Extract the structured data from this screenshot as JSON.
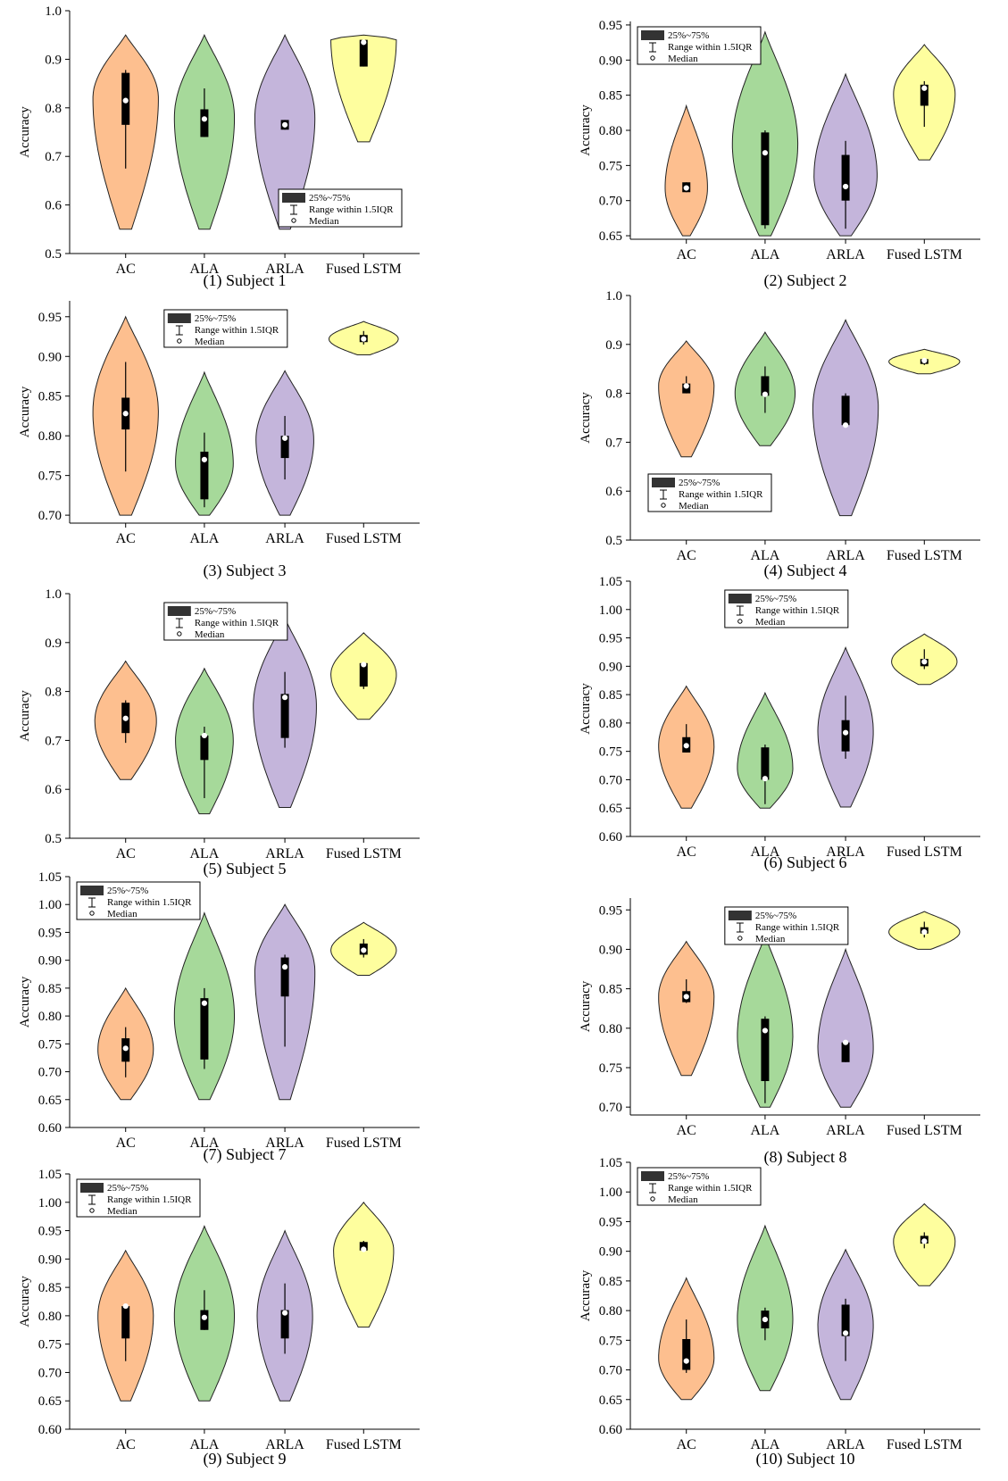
{
  "figure": {
    "legend_labels": [
      "25%~75%",
      "Range within 1.5IQR",
      "Median"
    ],
    "colors": {
      "AC": "#FDBF8F",
      "ALA": "#A6D99A",
      "ARLA": "#C4B5DB",
      "Fused LSTM": "#FEFE9E",
      "box": "#000000"
    }
  },
  "chart_data": [
    {
      "type": "violin",
      "caption": "(1) Subject 1",
      "ylabel": "Accuracy",
      "categories": [
        "AC",
        "ALA",
        "ARLA",
        "Fused LSTM"
      ],
      "ylim": [
        0.5,
        1.0
      ],
      "yticks": [
        "0.5",
        "0.6",
        "0.7",
        "0.8",
        "0.9",
        "1.0"
      ],
      "legend_position": "bottom-right",
      "series": [
        {
          "name": "AC",
          "min": 0.55,
          "max": 0.95,
          "q1": 0.765,
          "median": 0.815,
          "q3": 0.872,
          "whisker_low": 0.675,
          "whisker_high": 0.878,
          "peak": 0.82,
          "width": 0.85
        },
        {
          "name": "ALA",
          "min": 0.55,
          "max": 0.95,
          "q1": 0.74,
          "median": 0.777,
          "q3": 0.797,
          "whisker_low": 0.74,
          "whisker_high": 0.84,
          "peak": 0.78,
          "width": 0.78
        },
        {
          "name": "ARLA",
          "min": 0.55,
          "max": 0.95,
          "q1": 0.755,
          "median": 0.765,
          "q3": 0.775,
          "whisker_low": 0.755,
          "whisker_high": 0.775,
          "peak": 0.78,
          "width": 0.78
        },
        {
          "name": "Fused LSTM",
          "min": 0.73,
          "max": 0.95,
          "q1": 0.885,
          "median": 0.935,
          "q3": 0.94,
          "whisker_low": 0.885,
          "whisker_high": 0.94,
          "peak": 0.94,
          "width": 0.85
        }
      ]
    },
    {
      "type": "violin",
      "caption": "(2) Subject 2",
      "ylabel": "Accuracy",
      "categories": [
        "AC",
        "ALA",
        "ARLA",
        "Fused LSTM"
      ],
      "ylim": [
        0.645,
        0.955
      ],
      "yticks": [
        "0.65",
        "0.70",
        "0.75",
        "0.80",
        "0.85",
        "0.90",
        "0.95"
      ],
      "legend_position": "top-left",
      "series": [
        {
          "name": "AC",
          "min": 0.65,
          "max": 0.835,
          "q1": 0.712,
          "median": 0.718,
          "q3": 0.726,
          "whisker_low": 0.712,
          "whisker_high": 0.726,
          "peak": 0.718,
          "width": 0.55
        },
        {
          "name": "ALA",
          "min": 0.65,
          "max": 0.94,
          "q1": 0.665,
          "median": 0.768,
          "q3": 0.797,
          "whisker_low": 0.66,
          "whisker_high": 0.8,
          "peak": 0.78,
          "width": 0.85
        },
        {
          "name": "ARLA",
          "min": 0.65,
          "max": 0.88,
          "q1": 0.7,
          "median": 0.72,
          "q3": 0.765,
          "whisker_low": 0.66,
          "whisker_high": 0.785,
          "peak": 0.735,
          "width": 0.82
        },
        {
          "name": "Fused LSTM",
          "min": 0.758,
          "max": 0.922,
          "q1": 0.835,
          "median": 0.86,
          "q3": 0.865,
          "whisker_low": 0.805,
          "whisker_high": 0.87,
          "peak": 0.852,
          "width": 0.8
        }
      ]
    },
    {
      "type": "violin",
      "caption": "(3) Subject 3",
      "ylabel": "Accuracy",
      "categories": [
        "AC",
        "ALA",
        "ARLA",
        "Fused LSTM"
      ],
      "ylim": [
        0.69,
        0.97
      ],
      "yticks": [
        "0.70",
        "0.75",
        "0.80",
        "0.85",
        "0.90",
        "0.95"
      ],
      "legend_position": "top-center",
      "series": [
        {
          "name": "AC",
          "min": 0.7,
          "max": 0.95,
          "q1": 0.808,
          "median": 0.828,
          "q3": 0.848,
          "whisker_low": 0.755,
          "whisker_high": 0.893,
          "peak": 0.83,
          "width": 0.85
        },
        {
          "name": "ALA",
          "min": 0.7,
          "max": 0.88,
          "q1": 0.72,
          "median": 0.77,
          "q3": 0.78,
          "whisker_low": 0.71,
          "whisker_high": 0.804,
          "peak": 0.765,
          "width": 0.75
        },
        {
          "name": "ARLA",
          "min": 0.7,
          "max": 0.882,
          "q1": 0.772,
          "median": 0.797,
          "q3": 0.8,
          "whisker_low": 0.745,
          "whisker_high": 0.825,
          "peak": 0.795,
          "width": 0.75
        },
        {
          "name": "Fused LSTM",
          "min": 0.902,
          "max": 0.944,
          "q1": 0.918,
          "median": 0.922,
          "q3": 0.927,
          "whisker_low": 0.915,
          "whisker_high": 0.932,
          "peak": 0.922,
          "width": 0.9
        }
      ]
    },
    {
      "type": "violin",
      "caption": "(4) Subject 4",
      "ylabel": "Accuracy",
      "categories": [
        "AC",
        "ALA",
        "ARLA",
        "Fused LSTM"
      ],
      "ylim": [
        0.5,
        1.0
      ],
      "yticks": [
        "0.5",
        "0.6",
        "0.7",
        "0.8",
        "0.9",
        "1.0"
      ],
      "legend_position": "bottom-left",
      "series": [
        {
          "name": "AC",
          "min": 0.67,
          "max": 0.907,
          "q1": 0.8,
          "median": 0.815,
          "q3": 0.82,
          "whisker_low": 0.8,
          "whisker_high": 0.835,
          "peak": 0.815,
          "width": 0.72
        },
        {
          "name": "ALA",
          "min": 0.693,
          "max": 0.925,
          "q1": 0.795,
          "median": 0.798,
          "q3": 0.835,
          "whisker_low": 0.76,
          "whisker_high": 0.855,
          "peak": 0.8,
          "width": 0.78
        },
        {
          "name": "ARLA",
          "min": 0.55,
          "max": 0.95,
          "q1": 0.735,
          "median": 0.735,
          "q3": 0.795,
          "whisker_low": 0.735,
          "whisker_high": 0.8,
          "peak": 0.77,
          "width": 0.85
        },
        {
          "name": "Fused LSTM",
          "min": 0.84,
          "max": 0.89,
          "q1": 0.86,
          "median": 0.867,
          "q3": 0.87,
          "whisker_low": 0.858,
          "whisker_high": 0.872,
          "peak": 0.865,
          "width": 0.92
        }
      ]
    },
    {
      "type": "violin",
      "caption": "(5) Subject 5",
      "ylabel": "Accuracy",
      "categories": [
        "AC",
        "ALA",
        "ARLA",
        "Fused LSTM"
      ],
      "ylim": [
        0.5,
        1.0
      ],
      "yticks": [
        "0.5",
        "0.6",
        "0.7",
        "0.8",
        "0.9",
        "1.0"
      ],
      "legend_position": "top-center",
      "series": [
        {
          "name": "AC",
          "min": 0.62,
          "max": 0.862,
          "q1": 0.715,
          "median": 0.745,
          "q3": 0.777,
          "whisker_low": 0.695,
          "whisker_high": 0.782,
          "peak": 0.74,
          "width": 0.8
        },
        {
          "name": "ALA",
          "min": 0.55,
          "max": 0.847,
          "q1": 0.66,
          "median": 0.71,
          "q3": 0.71,
          "whisker_low": 0.582,
          "whisker_high": 0.728,
          "peak": 0.7,
          "width": 0.75
        },
        {
          "name": "ARLA",
          "min": 0.563,
          "max": 0.95,
          "q1": 0.705,
          "median": 0.788,
          "q3": 0.795,
          "whisker_low": 0.685,
          "whisker_high": 0.84,
          "peak": 0.77,
          "width": 0.82
        },
        {
          "name": "Fused LSTM",
          "min": 0.743,
          "max": 0.92,
          "q1": 0.81,
          "median": 0.855,
          "q3": 0.858,
          "whisker_low": 0.805,
          "whisker_high": 0.86,
          "peak": 0.835,
          "width": 0.85
        }
      ]
    },
    {
      "type": "violin",
      "caption": "(6) Subject 6",
      "ylabel": "Accuracy",
      "categories": [
        "AC",
        "ALA",
        "ARLA",
        "Fused LSTM"
      ],
      "ylim": [
        0.6,
        1.05
      ],
      "yticks": [
        "0.60",
        "0.65",
        "0.70",
        "0.75",
        "0.80",
        "0.85",
        "0.90",
        "0.95",
        "1.00",
        "1.05"
      ],
      "legend_position": "top-center",
      "series": [
        {
          "name": "AC",
          "min": 0.65,
          "max": 0.865,
          "q1": 0.748,
          "median": 0.76,
          "q3": 0.775,
          "whisker_low": 0.748,
          "whisker_high": 0.798,
          "peak": 0.76,
          "width": 0.72
        },
        {
          "name": "ALA",
          "min": 0.65,
          "max": 0.853,
          "q1": 0.7,
          "median": 0.702,
          "q3": 0.757,
          "whisker_low": 0.657,
          "whisker_high": 0.762,
          "peak": 0.72,
          "width": 0.72
        },
        {
          "name": "ARLA",
          "min": 0.652,
          "max": 0.933,
          "q1": 0.75,
          "median": 0.783,
          "q3": 0.805,
          "whisker_low": 0.737,
          "whisker_high": 0.848,
          "peak": 0.785,
          "width": 0.72
        },
        {
          "name": "Fused LSTM",
          "min": 0.868,
          "max": 0.957,
          "q1": 0.9,
          "median": 0.908,
          "q3": 0.913,
          "whisker_low": 0.895,
          "whisker_high": 0.93,
          "peak": 0.908,
          "width": 0.85
        }
      ]
    },
    {
      "type": "violin",
      "caption": "(7) Subject 7",
      "ylabel": "Accuracy",
      "categories": [
        "AC",
        "ALA",
        "ARLA",
        "Fused LSTM"
      ],
      "ylim": [
        0.6,
        1.05
      ],
      "yticks": [
        "0.60",
        "0.65",
        "0.70",
        "0.75",
        "0.80",
        "0.85",
        "0.90",
        "0.95",
        "1.00",
        "1.05"
      ],
      "legend_position": "top-left",
      "series": [
        {
          "name": "AC",
          "min": 0.65,
          "max": 0.85,
          "q1": 0.718,
          "median": 0.742,
          "q3": 0.76,
          "whisker_low": 0.69,
          "whisker_high": 0.78,
          "peak": 0.74,
          "width": 0.72
        },
        {
          "name": "ALA",
          "min": 0.65,
          "max": 0.985,
          "q1": 0.722,
          "median": 0.823,
          "q3": 0.832,
          "whisker_low": 0.705,
          "whisker_high": 0.85,
          "peak": 0.8,
          "width": 0.78
        },
        {
          "name": "ARLA",
          "min": 0.65,
          "max": 1.0,
          "q1": 0.835,
          "median": 0.888,
          "q3": 0.905,
          "whisker_low": 0.745,
          "whisker_high": 0.91,
          "peak": 0.88,
          "width": 0.78
        },
        {
          "name": "Fused LSTM",
          "min": 0.873,
          "max": 0.968,
          "q1": 0.91,
          "median": 0.918,
          "q3": 0.93,
          "whisker_low": 0.905,
          "whisker_high": 0.938,
          "peak": 0.918,
          "width": 0.85
        }
      ]
    },
    {
      "type": "violin",
      "caption": "(8) Subject 8",
      "ylabel": "Accuracy",
      "categories": [
        "AC",
        "ALA",
        "ARLA",
        "Fused LSTM"
      ],
      "ylim": [
        0.69,
        0.965
      ],
      "yticks": [
        "0.70",
        "0.75",
        "0.80",
        "0.85",
        "0.90",
        "0.95"
      ],
      "legend_position": "top-center",
      "series": [
        {
          "name": "AC",
          "min": 0.74,
          "max": 0.91,
          "q1": 0.833,
          "median": 0.84,
          "q3": 0.847,
          "whisker_low": 0.832,
          "whisker_high": 0.862,
          "peak": 0.84,
          "width": 0.72
        },
        {
          "name": "ALA",
          "min": 0.7,
          "max": 0.918,
          "q1": 0.733,
          "median": 0.797,
          "q3": 0.812,
          "whisker_low": 0.705,
          "whisker_high": 0.815,
          "peak": 0.79,
          "width": 0.72
        },
        {
          "name": "ARLA",
          "min": 0.7,
          "max": 0.9,
          "q1": 0.757,
          "median": 0.782,
          "q3": 0.782,
          "whisker_low": 0.757,
          "whisker_high": 0.783,
          "peak": 0.775,
          "width": 0.72
        },
        {
          "name": "Fused LSTM",
          "min": 0.9,
          "max": 0.948,
          "q1": 0.92,
          "median": 0.922,
          "q3": 0.928,
          "whisker_low": 0.915,
          "whisker_high": 0.935,
          "peak": 0.922,
          "width": 0.92
        }
      ]
    },
    {
      "type": "violin",
      "caption": "(9) Subject 9",
      "ylabel": "Accuracy",
      "categories": [
        "AC",
        "ALA",
        "ARLA",
        "Fused LSTM"
      ],
      "ylim": [
        0.6,
        1.05
      ],
      "yticks": [
        "0.60",
        "0.65",
        "0.70",
        "0.75",
        "0.80",
        "0.85",
        "0.90",
        "0.95",
        "1.00",
        "1.05"
      ],
      "legend_position": "top-left",
      "series": [
        {
          "name": "AC",
          "min": 0.65,
          "max": 0.915,
          "q1": 0.76,
          "median": 0.817,
          "q3": 0.817,
          "whisker_low": 0.72,
          "whisker_high": 0.818,
          "peak": 0.8,
          "width": 0.72
        },
        {
          "name": "ALA",
          "min": 0.65,
          "max": 0.958,
          "q1": 0.775,
          "median": 0.797,
          "q3": 0.81,
          "whisker_low": 0.775,
          "whisker_high": 0.845,
          "peak": 0.8,
          "width": 0.78
        },
        {
          "name": "ARLA",
          "min": 0.65,
          "max": 0.95,
          "q1": 0.76,
          "median": 0.805,
          "q3": 0.81,
          "whisker_low": 0.733,
          "whisker_high": 0.857,
          "peak": 0.8,
          "width": 0.72
        },
        {
          "name": "Fused LSTM",
          "min": 0.78,
          "max": 1.0,
          "q1": 0.915,
          "median": 0.917,
          "q3": 0.93,
          "whisker_low": 0.915,
          "whisker_high": 0.932,
          "peak": 0.915,
          "width": 0.78
        }
      ]
    },
    {
      "type": "violin",
      "caption": "(10) Subject 10",
      "ylabel": "Accuracy",
      "categories": [
        "AC",
        "ALA",
        "ARLA",
        "Fused LSTM"
      ],
      "ylim": [
        0.6,
        1.05
      ],
      "yticks": [
        "0.60",
        "0.65",
        "0.70",
        "0.75",
        "0.80",
        "0.85",
        "0.90",
        "0.95",
        "1.00",
        "1.05"
      ],
      "legend_position": "top-left",
      "series": [
        {
          "name": "AC",
          "min": 0.65,
          "max": 0.855,
          "q1": 0.7,
          "median": 0.715,
          "q3": 0.752,
          "whisker_low": 0.695,
          "whisker_high": 0.785,
          "peak": 0.72,
          "width": 0.72
        },
        {
          "name": "ALA",
          "min": 0.665,
          "max": 0.943,
          "q1": 0.77,
          "median": 0.785,
          "q3": 0.8,
          "whisker_low": 0.75,
          "whisker_high": 0.805,
          "peak": 0.785,
          "width": 0.72
        },
        {
          "name": "ARLA",
          "min": 0.65,
          "max": 0.903,
          "q1": 0.757,
          "median": 0.762,
          "q3": 0.81,
          "whisker_low": 0.715,
          "whisker_high": 0.82,
          "peak": 0.775,
          "width": 0.72
        },
        {
          "name": "Fused LSTM",
          "min": 0.842,
          "max": 0.98,
          "q1": 0.913,
          "median": 0.917,
          "q3": 0.926,
          "whisker_low": 0.905,
          "whisker_high": 0.932,
          "peak": 0.917,
          "width": 0.8
        }
      ]
    }
  ]
}
